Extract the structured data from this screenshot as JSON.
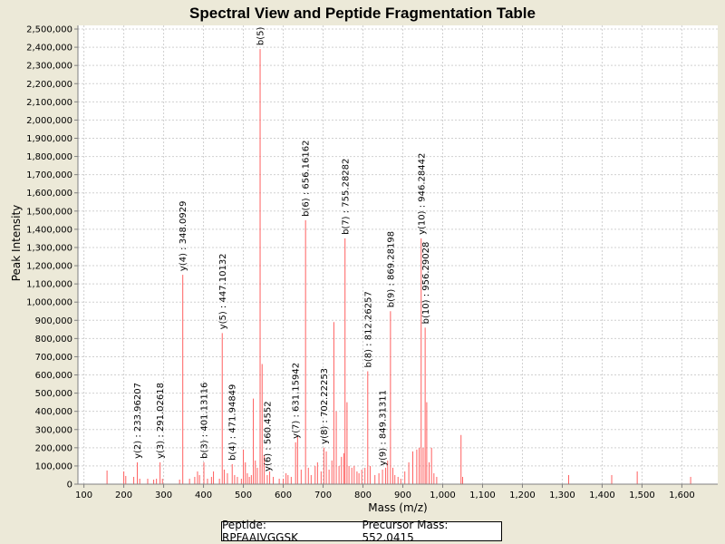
{
  "footer": {
    "peptide": "Peptide: RPFAAIVGGSK",
    "precursor": "Precursor Mass: 552.0415"
  },
  "colors": {
    "peak": "#ff6060",
    "grid": "#d0d0d0",
    "plot_bg": "#ffffff",
    "page_bg": "#ece9d8"
  },
  "chart_data": {
    "type": "bar",
    "title": "Spectral View and Peptide Fragmentation Table",
    "xlabel": "Mass (m/z)",
    "ylabel": "Peak Intensity",
    "xlim": [
      85,
      1690
    ],
    "ylim": [
      0,
      2520000
    ],
    "xticks": [
      100,
      200,
      300,
      400,
      500,
      600,
      700,
      800,
      900,
      1000,
      1100,
      1200,
      1300,
      1400,
      1500,
      1600
    ],
    "xtick_labels": [
      "100",
      "200",
      "300",
      "400",
      "500",
      "600",
      "700",
      "800",
      "900",
      "1,000",
      "1,100",
      "1,200",
      "1,300",
      "1,400",
      "1,500",
      "1,600"
    ],
    "yticks": [
      0,
      100000,
      200000,
      300000,
      400000,
      500000,
      600000,
      700000,
      800000,
      900000,
      1000000,
      1100000,
      1200000,
      1300000,
      1400000,
      1500000,
      1600000,
      1700000,
      1800000,
      1900000,
      2000000,
      2100000,
      2200000,
      2300000,
      2400000,
      2500000
    ],
    "ytick_labels": [
      "0",
      "100,000",
      "200,000",
      "300,000",
      "400,000",
      "500,000",
      "600,000",
      "700,000",
      "800,000",
      "900,000",
      "1,000,000",
      "1,100,000",
      "1,200,000",
      "1,300,000",
      "1,400,000",
      "1,500,000",
      "1,600,000",
      "1,700,000",
      "1,800,000",
      "1,900,000",
      "2,000,000",
      "2,100,000",
      "2,200,000",
      "2,300,000",
      "2,400,000",
      "2,500,000"
    ],
    "grid": true,
    "peaks": [
      [
        158,
        75000
      ],
      [
        200,
        70000
      ],
      [
        205,
        45000
      ],
      [
        225,
        40000
      ],
      [
        234,
        120000
      ],
      [
        240,
        30000
      ],
      [
        260,
        30000
      ],
      [
        275,
        25000
      ],
      [
        282,
        30000
      ],
      [
        291,
        120000
      ],
      [
        297,
        30000
      ],
      [
        340,
        25000
      ],
      [
        348,
        1150000
      ],
      [
        365,
        30000
      ],
      [
        378,
        40000
      ],
      [
        385,
        70000
      ],
      [
        390,
        50000
      ],
      [
        401,
        120000
      ],
      [
        410,
        30000
      ],
      [
        420,
        40000
      ],
      [
        425,
        70000
      ],
      [
        440,
        30000
      ],
      [
        447,
        830000
      ],
      [
        452,
        80000
      ],
      [
        460,
        60000
      ],
      [
        472,
        110000
      ],
      [
        478,
        50000
      ],
      [
        485,
        40000
      ],
      [
        495,
        30000
      ],
      [
        500,
        190000
      ],
      [
        505,
        120000
      ],
      [
        510,
        60000
      ],
      [
        515,
        40000
      ],
      [
        520,
        50000
      ],
      [
        525,
        470000
      ],
      [
        530,
        130000
      ],
      [
        535,
        90000
      ],
      [
        542,
        2390000
      ],
      [
        547,
        660000
      ],
      [
        552,
        160000
      ],
      [
        560,
        50000
      ],
      [
        566,
        70000
      ],
      [
        575,
        40000
      ],
      [
        590,
        30000
      ],
      [
        600,
        30000
      ],
      [
        607,
        60000
      ],
      [
        612,
        50000
      ],
      [
        620,
        40000
      ],
      [
        631,
        230000
      ],
      [
        636,
        260000
      ],
      [
        645,
        80000
      ],
      [
        656,
        1450000
      ],
      [
        663,
        90000
      ],
      [
        670,
        50000
      ],
      [
        680,
        100000
      ],
      [
        686,
        120000
      ],
      [
        695,
        70000
      ],
      [
        702,
        200000
      ],
      [
        708,
        180000
      ],
      [
        715,
        80000
      ],
      [
        722,
        130000
      ],
      [
        727,
        890000
      ],
      [
        733,
        400000
      ],
      [
        740,
        100000
      ],
      [
        746,
        150000
      ],
      [
        752,
        170000
      ],
      [
        755,
        1350000
      ],
      [
        760,
        450000
      ],
      [
        765,
        100000
      ],
      [
        772,
        90000
      ],
      [
        778,
        100000
      ],
      [
        785,
        70000
      ],
      [
        790,
        60000
      ],
      [
        797,
        80000
      ],
      [
        805,
        90000
      ],
      [
        812,
        620000
      ],
      [
        818,
        100000
      ],
      [
        830,
        50000
      ],
      [
        840,
        60000
      ],
      [
        849,
        80000
      ],
      [
        857,
        90000
      ],
      [
        862,
        130000
      ],
      [
        869,
        950000
      ],
      [
        875,
        90000
      ],
      [
        880,
        50000
      ],
      [
        888,
        40000
      ],
      [
        895,
        30000
      ],
      [
        905,
        70000
      ],
      [
        915,
        120000
      ],
      [
        925,
        180000
      ],
      [
        935,
        190000
      ],
      [
        941,
        200000
      ],
      [
        946,
        1350000
      ],
      [
        951,
        200000
      ],
      [
        956,
        860000
      ],
      [
        960,
        450000
      ],
      [
        966,
        120000
      ],
      [
        972,
        200000
      ],
      [
        978,
        60000
      ],
      [
        985,
        40000
      ],
      [
        1046,
        270000
      ],
      [
        1050,
        40000
      ],
      [
        1316,
        50000
      ],
      [
        1424,
        50000
      ],
      [
        1488,
        70000
      ],
      [
        1622,
        40000
      ]
    ],
    "annotations": [
      {
        "x": 233.96207,
        "y": 120000,
        "label": "y(2) : 233.96207"
      },
      {
        "x": 291.02618,
        "y": 120000,
        "label": "y(3) : 291.02618"
      },
      {
        "x": 348.0929,
        "y": 1150000,
        "label": "y(4) : 348.0929"
      },
      {
        "x": 401.13116,
        "y": 120000,
        "label": "b(3) : 401.13116"
      },
      {
        "x": 447.10132,
        "y": 830000,
        "label": "y(5) : 447.10132"
      },
      {
        "x": 471.94849,
        "y": 110000,
        "label": "b(4) : 471.94849"
      },
      {
        "x": 542,
        "y": 2390000,
        "label": "b(5)"
      },
      {
        "x": 560.4552,
        "y": 50000,
        "label": "y(6) : 560.4552"
      },
      {
        "x": 631.15942,
        "y": 230000,
        "label": "y(7) : 631.15942"
      },
      {
        "x": 656.16162,
        "y": 1450000,
        "label": "b(6) : 656.16162"
      },
      {
        "x": 702.22253,
        "y": 200000,
        "label": "y(8) : 702.22253"
      },
      {
        "x": 755.28282,
        "y": 1350000,
        "label": "b(7) : 755.28282"
      },
      {
        "x": 812.26257,
        "y": 620000,
        "label": "b(8) : 812.26257"
      },
      {
        "x": 849.31311,
        "y": 80000,
        "label": "y(9) : 849.31311"
      },
      {
        "x": 869.28198,
        "y": 950000,
        "label": "b(9) : 869.28198"
      },
      {
        "x": 946.28442,
        "y": 1350000,
        "label": "y(10) : 946.28442"
      },
      {
        "x": 956.29028,
        "y": 860000,
        "label": "b(10) : 956.29028"
      }
    ]
  }
}
